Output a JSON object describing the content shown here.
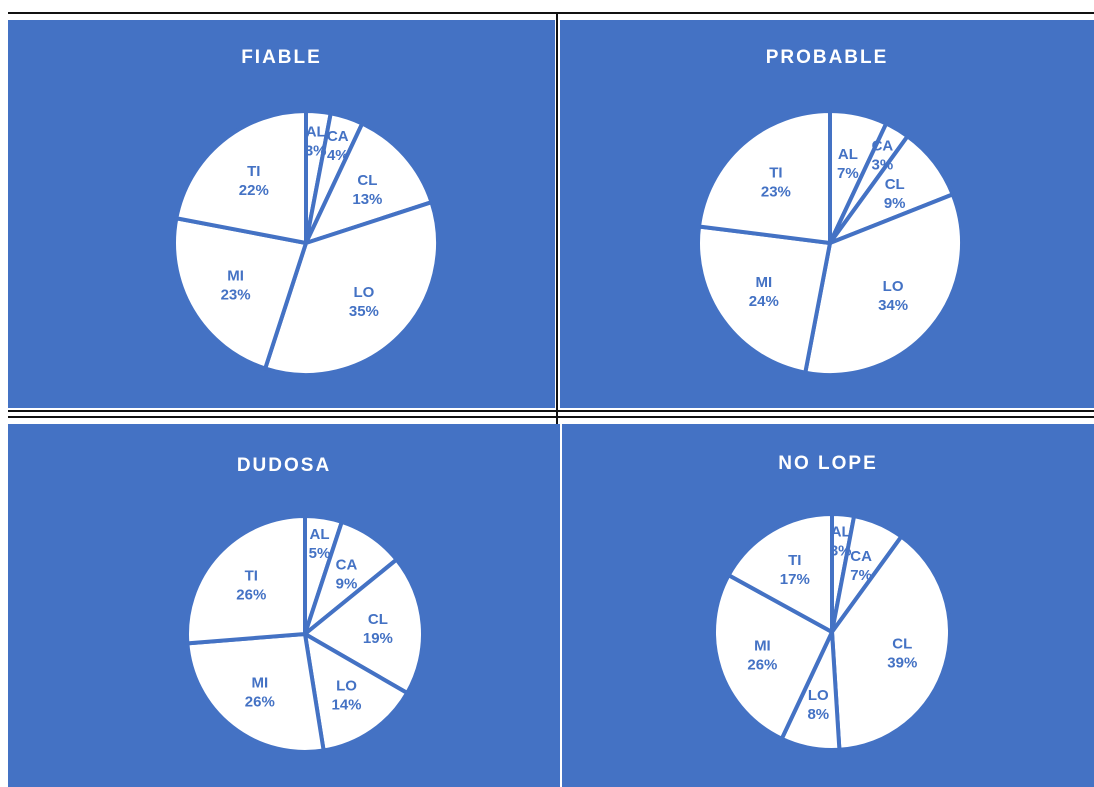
{
  "colors": {
    "panel": "#4472C4",
    "slice": "#FFFFFF",
    "label": "#4472C4"
  },
  "chart_data": [
    {
      "type": "pie",
      "title": "FIABLE",
      "categories": [
        "AL",
        "CA",
        "CL",
        "LO",
        "MI",
        "TI"
      ],
      "values": [
        3,
        4,
        13,
        35,
        23,
        22
      ],
      "labels": [
        "3%",
        "4%",
        "13%",
        "35%",
        "23%",
        "22%"
      ]
    },
    {
      "type": "pie",
      "title": "PROBABLE",
      "categories": [
        "AL",
        "CA",
        "CL",
        "LO",
        "MI",
        "TI"
      ],
      "values": [
        7,
        3,
        9,
        34,
        24,
        23
      ],
      "labels": [
        "7%",
        "3%",
        "9%",
        "34%",
        "24%",
        "23%"
      ]
    },
    {
      "type": "pie",
      "title": "DUDOSA",
      "categories": [
        "AL",
        "CA",
        "CL",
        "LO",
        "MI",
        "TI"
      ],
      "values": [
        5,
        9,
        19,
        14,
        26,
        26
      ],
      "labels": [
        "5%",
        "9%",
        "19%",
        "14%",
        "26%",
        "26%"
      ]
    },
    {
      "type": "pie",
      "title": "NO LOPE",
      "categories": [
        "AL",
        "CA",
        "CL",
        "LO",
        "MI",
        "TI"
      ],
      "values": [
        3,
        7,
        39,
        8,
        26,
        17
      ],
      "labels": [
        "3%",
        "7%",
        "39%",
        "8%",
        "26%",
        "17%"
      ]
    }
  ]
}
